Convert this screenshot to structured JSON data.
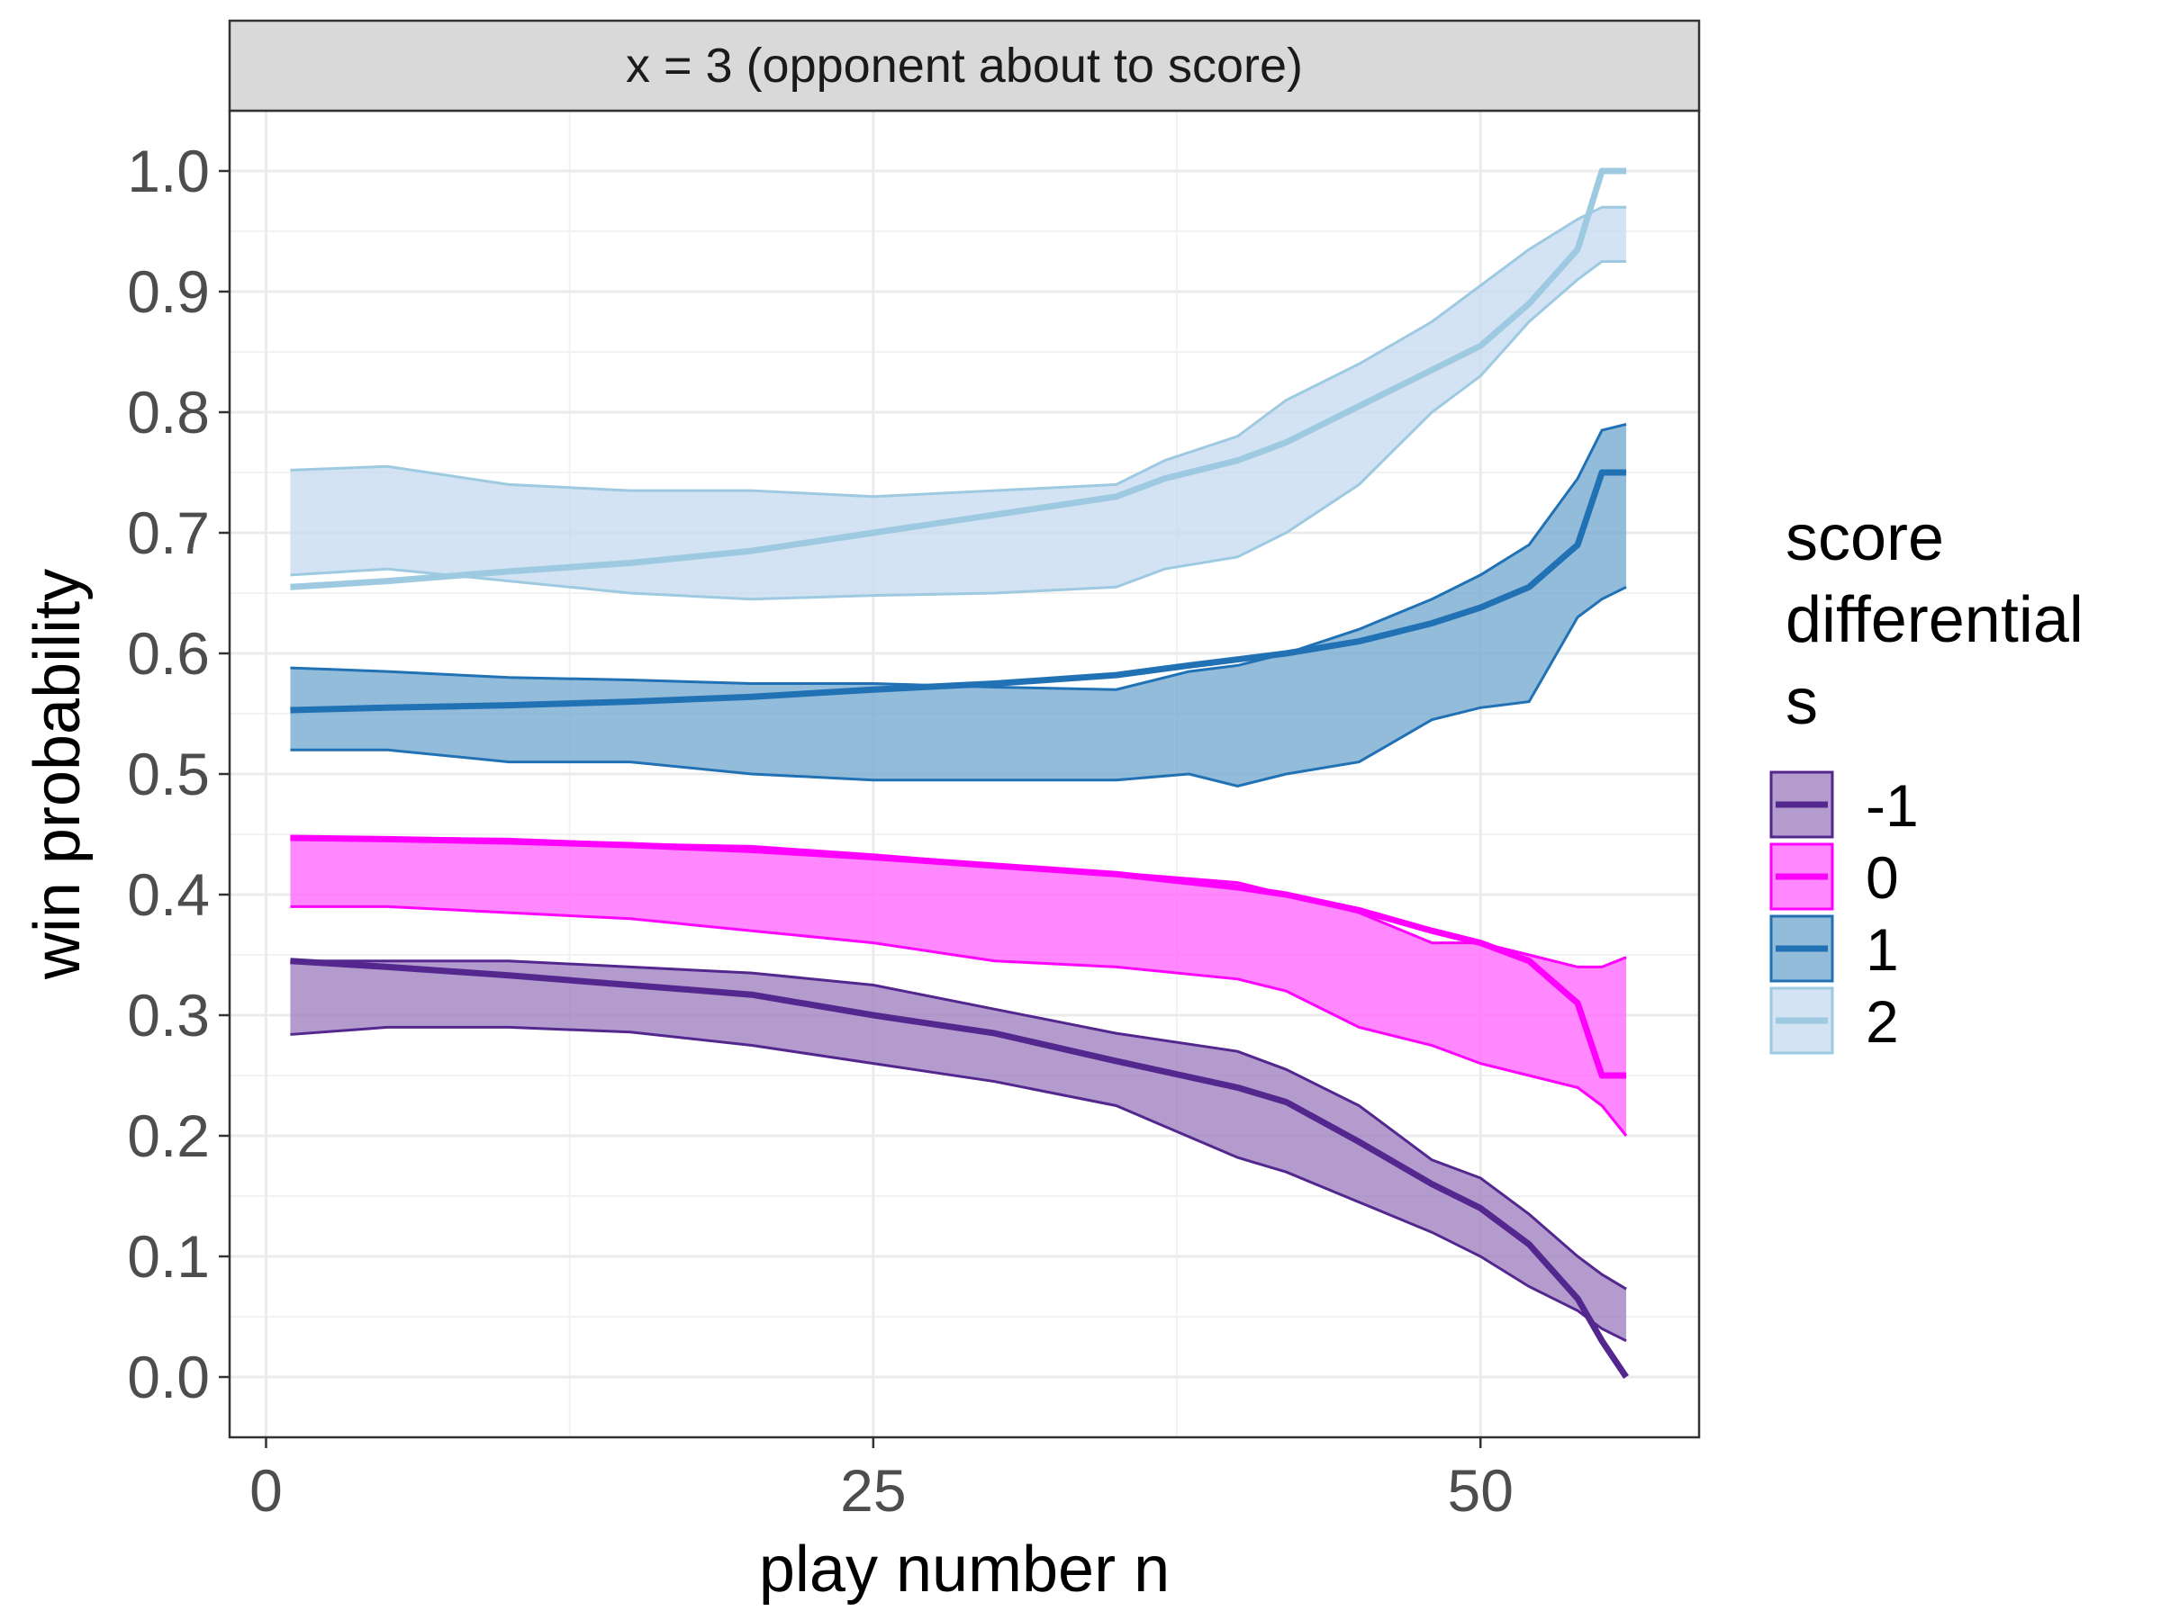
{
  "chart_data": {
    "type": "line",
    "facet_label": "x = 3 (opponent about to score)",
    "xlabel": "play number n",
    "ylabel": "win probability",
    "xlim": [
      -1.5,
      59
    ],
    "ylim": [
      -0.05,
      1.05
    ],
    "x_ticks": [
      0,
      25,
      50
    ],
    "x_tick_labels": [
      "0",
      "25",
      "50"
    ],
    "y_ticks": [
      0,
      0.1,
      0.2,
      0.3,
      0.4,
      0.5,
      0.6,
      0.7,
      0.8,
      0.9,
      1.0
    ],
    "y_tick_labels": [
      "0.0",
      "0.1",
      "0.2",
      "0.3",
      "0.4",
      "0.5",
      "0.6",
      "0.7",
      "0.8",
      "0.9",
      "1.0"
    ],
    "grid": true,
    "legend": {
      "title_lines": [
        "score",
        "differential",
        "s"
      ],
      "position": "right"
    },
    "series": [
      {
        "name": "-1",
        "color": "#54278f",
        "fill": "#9e7fc0",
        "x": [
          1,
          5,
          10,
          15,
          20,
          25,
          30,
          35,
          40,
          42,
          45,
          48,
          50,
          52,
          54,
          55,
          56
        ],
        "values": [
          0.345,
          0.34,
          0.333,
          0.325,
          0.317,
          0.3,
          0.285,
          0.262,
          0.24,
          0.228,
          0.195,
          0.16,
          0.14,
          0.11,
          0.065,
          0.03,
          0.0
        ],
        "lower": [
          0.284,
          0.29,
          0.29,
          0.286,
          0.275,
          0.26,
          0.245,
          0.225,
          0.182,
          0.17,
          0.145,
          0.12,
          0.1,
          0.075,
          0.055,
          0.04,
          0.03
        ],
        "upper": [
          0.345,
          0.345,
          0.345,
          0.34,
          0.335,
          0.325,
          0.305,
          0.285,
          0.27,
          0.255,
          0.225,
          0.18,
          0.165,
          0.135,
          0.1,
          0.085,
          0.073
        ]
      },
      {
        "name": "0",
        "color": "#ff00ff",
        "fill": "#ff66ff",
        "x": [
          1,
          5,
          10,
          15,
          20,
          25,
          30,
          35,
          40,
          42,
          45,
          48,
          50,
          52,
          54,
          55,
          56
        ],
        "values": [
          0.447,
          0.446,
          0.444,
          0.441,
          0.437,
          0.431,
          0.424,
          0.417,
          0.406,
          0.4,
          0.387,
          0.37,
          0.36,
          0.345,
          0.31,
          0.25,
          0.25
        ],
        "lower": [
          0.39,
          0.39,
          0.385,
          0.38,
          0.37,
          0.36,
          0.345,
          0.34,
          0.33,
          0.32,
          0.29,
          0.275,
          0.26,
          0.25,
          0.24,
          0.225,
          0.2
        ],
        "upper": [
          0.448,
          0.447,
          0.446,
          0.442,
          0.44,
          0.433,
          0.425,
          0.418,
          0.41,
          0.4,
          0.385,
          0.36,
          0.36,
          0.35,
          0.34,
          0.34,
          0.348
        ]
      },
      {
        "name": "1",
        "color": "#2171b5",
        "fill": "#74a9cf",
        "x": [
          1,
          5,
          10,
          15,
          20,
          25,
          30,
          35,
          38,
          40,
          42,
          45,
          48,
          50,
          52,
          54,
          55,
          56
        ],
        "values": [
          0.553,
          0.555,
          0.557,
          0.56,
          0.564,
          0.57,
          0.575,
          0.582,
          0.59,
          0.595,
          0.6,
          0.61,
          0.625,
          0.638,
          0.655,
          0.69,
          0.75,
          0.75
        ],
        "lower": [
          0.52,
          0.52,
          0.51,
          0.51,
          0.5,
          0.495,
          0.495,
          0.495,
          0.5,
          0.49,
          0.5,
          0.51,
          0.545,
          0.555,
          0.56,
          0.63,
          0.645,
          0.655
        ],
        "upper": [
          0.588,
          0.585,
          0.58,
          0.578,
          0.575,
          0.575,
          0.572,
          0.57,
          0.585,
          0.59,
          0.6,
          0.62,
          0.645,
          0.665,
          0.69,
          0.745,
          0.785,
          0.79
        ]
      },
      {
        "name": "2",
        "color": "#9ecae1",
        "fill": "#c6dbef",
        "x": [
          1,
          5,
          10,
          15,
          20,
          25,
          30,
          35,
          37,
          40,
          42,
          45,
          48,
          50,
          52,
          54,
          55,
          56
        ],
        "values": [
          0.655,
          0.66,
          0.668,
          0.675,
          0.685,
          0.7,
          0.715,
          0.73,
          0.745,
          0.76,
          0.775,
          0.805,
          0.835,
          0.855,
          0.89,
          0.935,
          1.0,
          1.0
        ],
        "lower": [
          0.665,
          0.67,
          0.66,
          0.65,
          0.645,
          0.648,
          0.65,
          0.655,
          0.67,
          0.68,
          0.7,
          0.74,
          0.8,
          0.83,
          0.875,
          0.91,
          0.925,
          0.925
        ],
        "upper": [
          0.752,
          0.755,
          0.74,
          0.735,
          0.735,
          0.73,
          0.735,
          0.74,
          0.76,
          0.78,
          0.81,
          0.84,
          0.875,
          0.905,
          0.935,
          0.96,
          0.97,
          0.97
        ]
      }
    ]
  }
}
